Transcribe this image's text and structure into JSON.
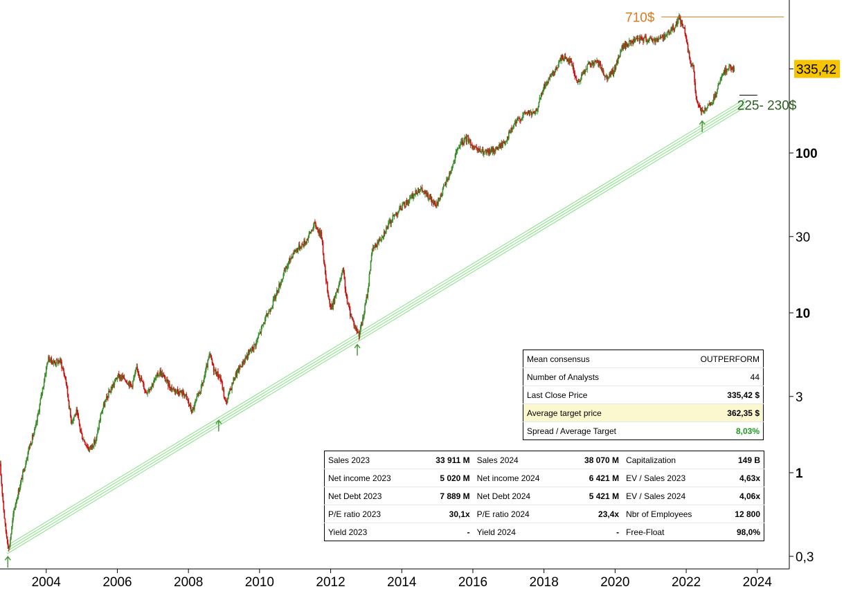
{
  "chart_data": {
    "type": "line",
    "subtype": "candlestick",
    "yscale": "log",
    "xlim": [
      2002.7,
      2024.9
    ],
    "ylim": [
      0.25,
      1000
    ],
    "x_ticks": [
      "2004",
      "2006",
      "2008",
      "2010",
      "2012",
      "2014",
      "2016",
      "2018",
      "2020",
      "2022",
      "2024"
    ],
    "y_ticks": [
      {
        "value": 0.3,
        "label": "0,3",
        "bold": false
      },
      {
        "value": 1,
        "label": "1",
        "bold": true
      },
      {
        "value": 3,
        "label": "3",
        "bold": false
      },
      {
        "value": 10,
        "label": "10",
        "bold": true
      },
      {
        "value": 30,
        "label": "30",
        "bold": false
      },
      {
        "value": 100,
        "label": "100",
        "bold": true
      }
    ],
    "price_points": [
      [
        2002.7,
        1.1
      ],
      [
        2002.85,
        0.45
      ],
      [
        2002.95,
        0.33
      ],
      [
        2003.1,
        0.6
      ],
      [
        2003.3,
        0.9
      ],
      [
        2003.5,
        1.4
      ],
      [
        2003.7,
        1.9
      ],
      [
        2003.9,
        3.4
      ],
      [
        2004.05,
        5.2
      ],
      [
        2004.2,
        4.9
      ],
      [
        2004.4,
        5.0
      ],
      [
        2004.55,
        3.8
      ],
      [
        2004.7,
        2.1
      ],
      [
        2004.85,
        2.4
      ],
      [
        2005.0,
        1.7
      ],
      [
        2005.2,
        1.4
      ],
      [
        2005.4,
        1.6
      ],
      [
        2005.55,
        2.4
      ],
      [
        2005.75,
        3.1
      ],
      [
        2006.0,
        4.0
      ],
      [
        2006.2,
        3.9
      ],
      [
        2006.4,
        3.5
      ],
      [
        2006.55,
        4.5
      ],
      [
        2006.8,
        3.2
      ],
      [
        2006.95,
        3.5
      ],
      [
        2007.2,
        4.3
      ],
      [
        2007.5,
        3.4
      ],
      [
        2007.9,
        3.1
      ],
      [
        2008.1,
        2.4
      ],
      [
        2008.4,
        3.6
      ],
      [
        2008.6,
        5.5
      ],
      [
        2008.7,
        4.5
      ],
      [
        2008.9,
        3.9
      ],
      [
        2009.05,
        2.7
      ],
      [
        2009.3,
        4.0
      ],
      [
        2009.6,
        5.2
      ],
      [
        2009.9,
        6.5
      ],
      [
        2010.1,
        8.5
      ],
      [
        2010.4,
        12.0
      ],
      [
        2010.7,
        18.0
      ],
      [
        2010.95,
        24.0
      ],
      [
        2011.3,
        28.0
      ],
      [
        2011.55,
        36.0
      ],
      [
        2011.75,
        30.0
      ],
      [
        2011.85,
        17.0
      ],
      [
        2012.0,
        10.5
      ],
      [
        2012.2,
        14.0
      ],
      [
        2012.35,
        18.5
      ],
      [
        2012.45,
        12.0
      ],
      [
        2012.55,
        10.0
      ],
      [
        2012.7,
        8.0
      ],
      [
        2012.8,
        7.4
      ],
      [
        2012.9,
        9.0
      ],
      [
        2013.05,
        14.0
      ],
      [
        2013.15,
        24.0
      ],
      [
        2013.5,
        32.0
      ],
      [
        2013.8,
        41.0
      ],
      [
        2014.0,
        46.0
      ],
      [
        2014.25,
        52.0
      ],
      [
        2014.5,
        60.0
      ],
      [
        2014.8,
        52.0
      ],
      [
        2014.95,
        46.0
      ],
      [
        2015.15,
        58.0
      ],
      [
        2015.4,
        80.0
      ],
      [
        2015.6,
        110.0
      ],
      [
        2015.85,
        125.0
      ],
      [
        2016.05,
        105.0
      ],
      [
        2016.4,
        100.0
      ],
      [
        2016.7,
        108.0
      ],
      [
        2016.9,
        118.0
      ],
      [
        2017.2,
        155.0
      ],
      [
        2017.5,
        180.0
      ],
      [
        2017.75,
        175.0
      ],
      [
        2018.0,
        260.0
      ],
      [
        2018.3,
        320.0
      ],
      [
        2018.5,
        400.0
      ],
      [
        2018.75,
        380.0
      ],
      [
        2018.95,
        270.0
      ],
      [
        2019.2,
        350.0
      ],
      [
        2019.5,
        370.0
      ],
      [
        2019.75,
        300.0
      ],
      [
        2019.95,
        320.0
      ],
      [
        2020.2,
        460.0
      ],
      [
        2020.5,
        500.0
      ],
      [
        2020.8,
        520.0
      ],
      [
        2021.1,
        510.0
      ],
      [
        2021.4,
        540.0
      ],
      [
        2021.65,
        610.0
      ],
      [
        2021.8,
        700.0
      ],
      [
        2021.95,
        590.0
      ],
      [
        2022.1,
        380.0
      ],
      [
        2022.2,
        340.0
      ],
      [
        2022.3,
        200.0
      ],
      [
        2022.45,
        180.0
      ],
      [
        2022.6,
        190.0
      ],
      [
        2022.8,
        220.0
      ],
      [
        2022.95,
        280.0
      ],
      [
        2023.1,
        330.0
      ],
      [
        2023.25,
        350.0
      ],
      [
        2023.35,
        335.42
      ]
    ],
    "trend_line": {
      "x": [
        2002.9,
        2023.65
      ],
      "y": [
        0.33,
        205
      ]
    },
    "annotations": {
      "target_high": {
        "label": "710$",
        "value": 710,
        "x_start": 2021.3,
        "x_end": 2024.75
      },
      "support": {
        "label": "225- 230$",
        "value": 230,
        "x_start": 2023.5,
        "x_end": 2024.0
      },
      "last_price": {
        "label": "335,42",
        "value": 335.42
      }
    },
    "arrow_markers": [
      [
        2002.92,
        0.33
      ],
      [
        2008.85,
        2.35
      ],
      [
        2012.75,
        7.0
      ],
      [
        2022.45,
        175
      ]
    ],
    "colors": {
      "up": "#3a8a2a",
      "down": "#cc1111",
      "trend": "#7fe37f",
      "target_label": "#d87a1e",
      "support_label": "#2a5e1e",
      "last_badge_bg": "#f7c400",
      "arrow": "#4a9a3a"
    }
  },
  "consensus": {
    "rows": [
      {
        "label": "Mean consensus",
        "value": "OUTPERFORM"
      },
      {
        "label": "Number of Analysts",
        "value": "44"
      },
      {
        "label": "Last Close Price",
        "value": "335,42 $"
      },
      {
        "label": "Average target price",
        "value": "362,35 $"
      },
      {
        "label": "Spread / Average Target",
        "value": "8,03%"
      }
    ]
  },
  "financials": {
    "rows": [
      [
        {
          "label": "Sales 2023",
          "value": "33 911 M"
        },
        {
          "label": "Sales 2024",
          "value": "38 070 M"
        },
        {
          "label": "Capitalization",
          "value": "149 B"
        }
      ],
      [
        {
          "label": "Net income 2023",
          "value": "5 020 M"
        },
        {
          "label": "Net income 2024",
          "value": "6 421 M"
        },
        {
          "label": "EV / Sales 2023",
          "value": "4,63x"
        }
      ],
      [
        {
          "label": "Net Debt 2023",
          "value": "7 889 M"
        },
        {
          "label": "Net Debt 2024",
          "value": "5 421 M"
        },
        {
          "label": "EV / Sales 2024",
          "value": "4,06x"
        }
      ],
      [
        {
          "label": "P/E ratio 2023",
          "value": "30,1x"
        },
        {
          "label": "P/E ratio 2024",
          "value": "23,4x"
        },
        {
          "label": "Nbr of Employees",
          "value": "12 800"
        }
      ],
      [
        {
          "label": "Yield 2023",
          "value": "-"
        },
        {
          "label": "Yield 2024",
          "value": "-"
        },
        {
          "label": "Free-Float",
          "value": "98,0%"
        }
      ]
    ]
  }
}
